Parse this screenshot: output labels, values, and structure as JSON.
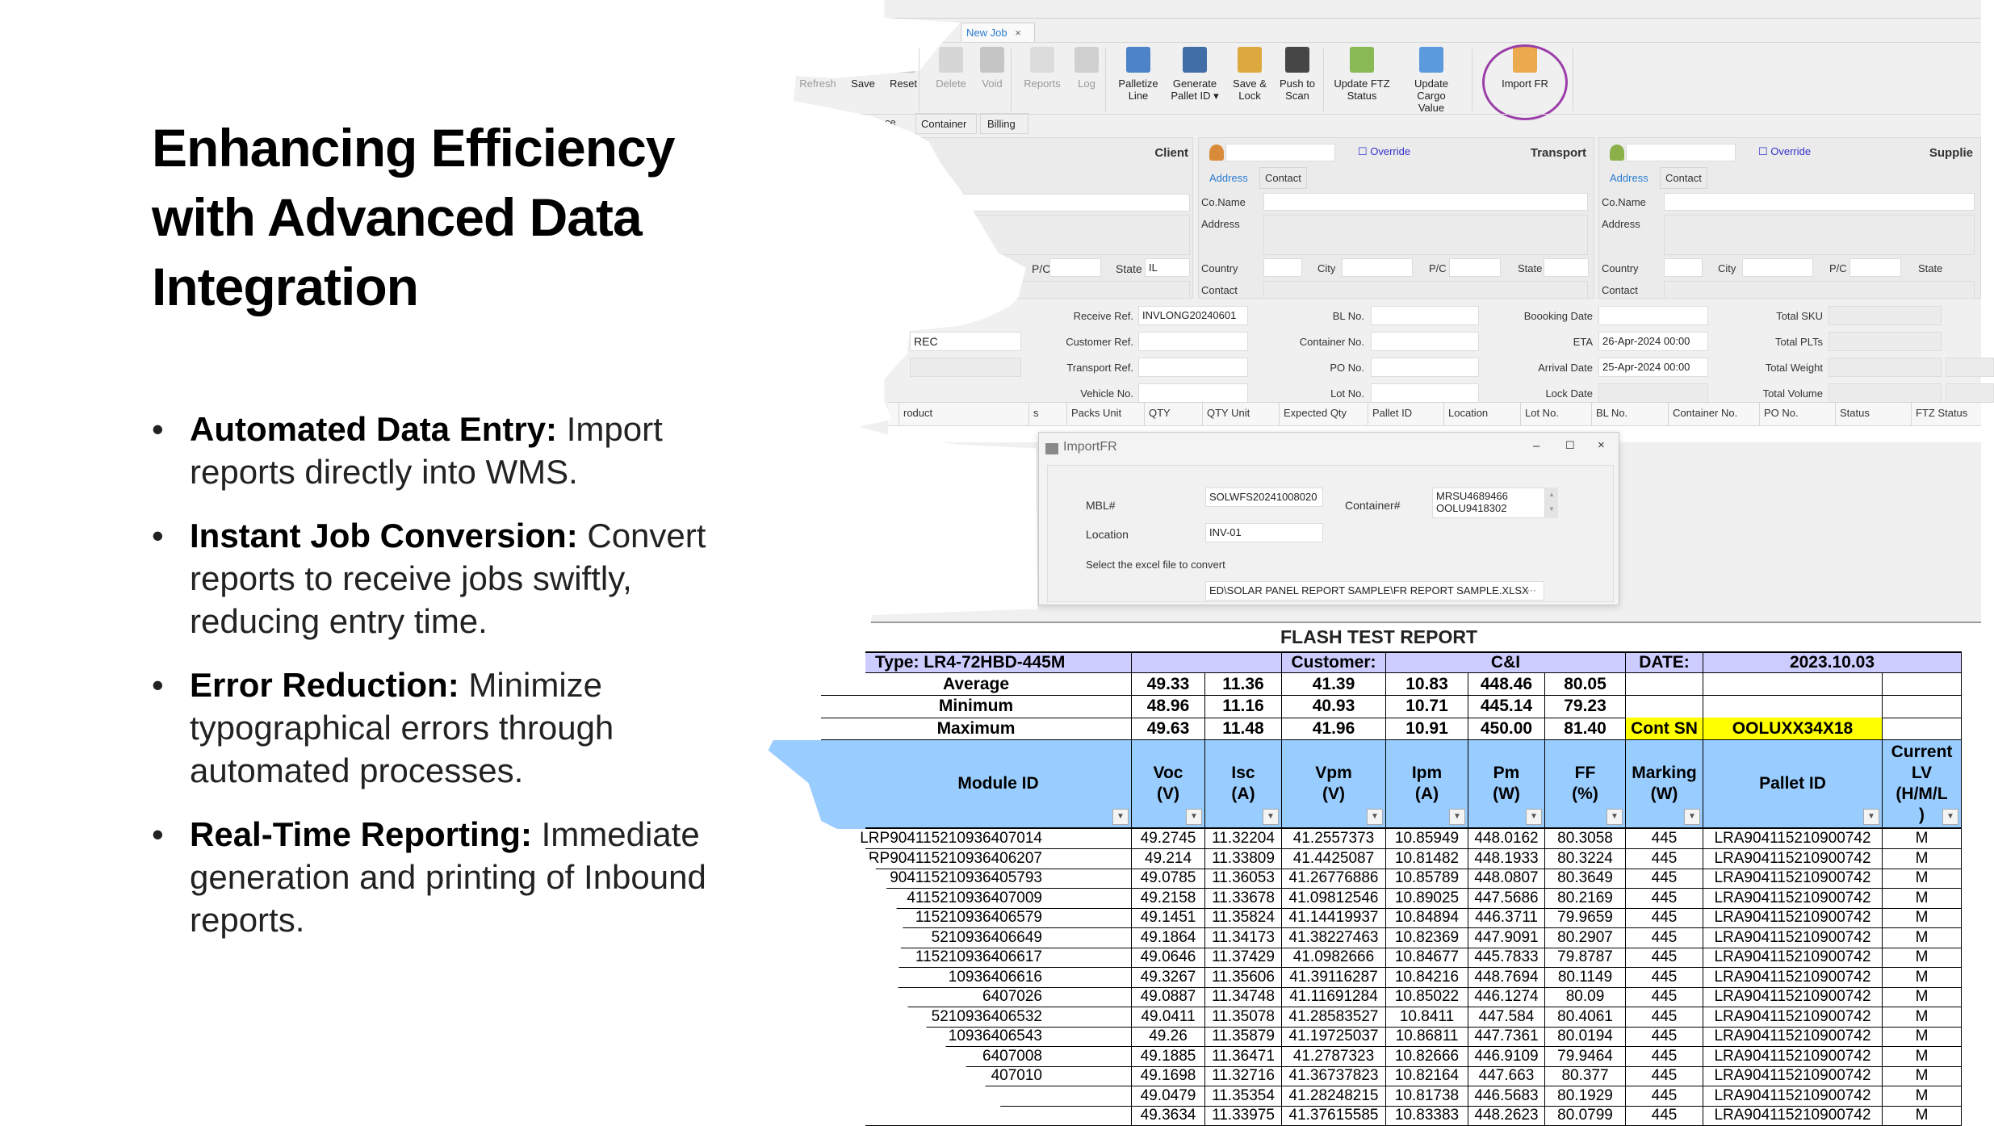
{
  "slide": {
    "title": "Enhancing Efficiency with Advanced Data Integration",
    "bullets": [
      {
        "head": "Automated Data Entry:",
        "text": " Import reports directly into WMS."
      },
      {
        "head": "Instant Job Conversion:",
        "text": " Convert reports to receive jobs swiftly, reducing entry time."
      },
      {
        "head": "Error Reduction:",
        "text": " Minimize typographical errors through automated processes."
      },
      {
        "head": "Real-Time Reporting:",
        "text": " Immediate generation and printing of Inbound reports."
      }
    ]
  },
  "app": {
    "tab": {
      "label": "New Job",
      "close": "×"
    },
    "toolbar": [
      {
        "label": "Refresh",
        "icon": "refresh-icon",
        "disabled": true
      },
      {
        "label": "Save",
        "icon": "save-icon",
        "disabled": false
      },
      {
        "label": "Reset",
        "icon": "reset-icon",
        "disabled": false
      },
      {
        "label": "Delete",
        "icon": "delete-icon",
        "disabled": true
      },
      {
        "label": "Void",
        "icon": "trash-icon",
        "disabled": true
      },
      {
        "label": "Reports",
        "icon": "reports-icon",
        "disabled": true
      },
      {
        "label": "Log",
        "icon": "log-icon",
        "disabled": true
      },
      {
        "label": "Palletize Line",
        "icon": "palletize-icon",
        "disabled": false
      },
      {
        "label": "Generate Pallet ID ▾",
        "icon": "generate-ab-icon",
        "disabled": false
      },
      {
        "label": "Save & Lock",
        "icon": "save-lock-icon",
        "disabled": false
      },
      {
        "label": "Push to Scan",
        "icon": "barcode-icon",
        "disabled": false
      },
      {
        "label": "Update FTZ Status",
        "icon": "flag-icon",
        "disabled": false
      },
      {
        "label": "Update Cargo Value",
        "icon": "grid-edit-icon",
        "disabled": false
      },
      {
        "label": "Import FR",
        "icon": "import-table-icon",
        "disabled": false
      }
    ],
    "subtabs": [
      "ce",
      "Container",
      "Billing"
    ],
    "client": {
      "title": "Client",
      "pc_label": "P/C",
      "state_label": "State",
      "state_value": "IL"
    },
    "transport": {
      "title": "Transport",
      "override": "Override"
    },
    "supplier": {
      "title": "Supplie",
      "override": "Override"
    },
    "address_tabs": [
      "Address",
      "Contact"
    ],
    "addr_labels": {
      "coname": "Co.Name",
      "address": "Address",
      "country": "Country",
      "city": "City",
      "pc": "P/C",
      "state": "State",
      "contact": "Contact"
    },
    "form": {
      "receive_ref": {
        "label": "Receive Ref.",
        "value": "INVLONG20240601"
      },
      "customer_ref": {
        "label": "Customer Ref.",
        "value": ""
      },
      "transport_ref": {
        "label": "Transport Ref.",
        "value": ""
      },
      "vehicle_no": {
        "label": "Vehicle No.",
        "value": ""
      },
      "bl_no": {
        "label": "BL No.",
        "value": ""
      },
      "container_no": {
        "label": "Container No.",
        "value": ""
      },
      "po_no": {
        "label": "PO No.",
        "value": ""
      },
      "lot_no": {
        "label": "Lot No.",
        "value": ""
      },
      "booking_date": {
        "label": "Boooking Date",
        "value": ""
      },
      "eta": {
        "label": "ETA",
        "value": "26-Apr-2024 00:00"
      },
      "arrival_date": {
        "label": "Arrival Date",
        "value": "25-Apr-2024 00:00"
      },
      "lock_date": {
        "label": "Lock Date",
        "value": ""
      },
      "total_sku": {
        "label": "Total SKU"
      },
      "total_plts": {
        "label": "Total PLTs"
      },
      "total_weight": {
        "label": "Total Weight"
      },
      "total_volume": {
        "label": "Total Volume"
      },
      "rec_select": "REC"
    },
    "grid_columns": [
      "roduct",
      "s",
      "Packs Unit",
      "QTY",
      "QTY Unit",
      "Expected Qty",
      "Pallet ID",
      "Location",
      "Lot No.",
      "BL No.",
      "Container No.",
      "PO No.",
      "Status",
      "FTZ Status"
    ],
    "accent_color": "#9b3fa8"
  },
  "dialog": {
    "title": "ImportFR",
    "mbl_label": "MBL#",
    "mbl_value": "SOLWFS20241008020",
    "container_label": "Container#",
    "container_values": [
      "MRSU4689466",
      "OOLU9418302"
    ],
    "location_label": "Location",
    "location_value": "INV-01",
    "select_label": "Select the excel file to convert",
    "file_path": "ED\\SOLAR PANEL REPORT SAMPLE\\FR REPORT SAMPLE.XLSX",
    "browse": "···"
  },
  "report": {
    "title": "FLASH TEST REPORT",
    "type": "Type: LR4-72HBD-445M",
    "customer_label": "Customer:",
    "customer_value": "C&I",
    "date_label": "DATE:",
    "date_value": "2023.10.03",
    "stats": [
      {
        "label": "Average",
        "values": [
          "49.33",
          "11.36",
          "41.39",
          "10.83",
          "448.46",
          "80.05"
        ]
      },
      {
        "label": "Minimum",
        "values": [
          "48.96",
          "11.16",
          "40.93",
          "10.71",
          "445.14",
          "79.23"
        ]
      },
      {
        "label": "Maximum",
        "values": [
          "49.63",
          "11.48",
          "41.96",
          "10.91",
          "450.00",
          "81.40"
        ]
      }
    ],
    "cont_sn_label": "Cont SN",
    "cont_sn_value": "OOLUXX34X18",
    "headers": [
      "Module ID",
      "Voc\n(V)",
      "Isc\n(A)",
      "Vpm\n(V)",
      "Ipm\n(A)",
      "Pm\n(W)",
      "FF\n(%)",
      "Marking\n(W)",
      "Pallet ID",
      "Current\nLV\n(H/M/L\n)"
    ],
    "rows": [
      [
        "LRP904115210936407014",
        "49.2745",
        "11.32204",
        "41.2557373",
        "10.85949",
        "448.0162",
        "80.3058",
        "445",
        "LRA904115210900742",
        "M"
      ],
      [
        "RP904115210936406207",
        "49.214",
        "11.33809",
        "41.4425087",
        "10.81482",
        "448.1933",
        "80.3224",
        "445",
        "LRA904115210900742",
        "M"
      ],
      [
        "904115210936405793",
        "49.0785",
        "11.36053",
        "41.26776886",
        "10.85789",
        "448.0807",
        "80.3649",
        "445",
        "LRA904115210900742",
        "M"
      ],
      [
        "4115210936407009",
        "49.2158",
        "11.33678",
        "41.09812546",
        "10.89025",
        "447.5686",
        "80.2169",
        "445",
        "LRA904115210900742",
        "M"
      ],
      [
        "115210936406579",
        "49.1451",
        "11.35824",
        "41.14419937",
        "10.84894",
        "446.3711",
        "79.9659",
        "445",
        "LRA904115210900742",
        "M"
      ],
      [
        "5210936406649",
        "49.1864",
        "11.34173",
        "41.38227463",
        "10.82369",
        "447.9091",
        "80.2907",
        "445",
        "LRA904115210900742",
        "M"
      ],
      [
        "115210936406617",
        "49.0646",
        "11.37429",
        "41.0982666",
        "10.84677",
        "445.7833",
        "79.8787",
        "445",
        "LRA904115210900742",
        "M"
      ],
      [
        "10936406616",
        "49.3267",
        "11.35606",
        "41.39116287",
        "10.84216",
        "448.7694",
        "80.1149",
        "445",
        "LRA904115210900742",
        "M"
      ],
      [
        "6407026",
        "49.0887",
        "11.34748",
        "41.11691284",
        "10.85022",
        "446.1274",
        "80.09",
        "445",
        "LRA904115210900742",
        "M"
      ],
      [
        "5210936406532",
        "49.0411",
        "11.35078",
        "41.28583527",
        "10.8411",
        "447.584",
        "80.4061",
        "445",
        "LRA904115210900742",
        "M"
      ],
      [
        "10936406543",
        "49.26",
        "11.35879",
        "41.19725037",
        "10.86811",
        "447.7361",
        "80.0194",
        "445",
        "LRA904115210900742",
        "M"
      ],
      [
        "6407008",
        "49.1885",
        "11.36471",
        "41.2787323",
        "10.82666",
        "446.9109",
        "79.9464",
        "445",
        "LRA904115210900742",
        "M"
      ],
      [
        "407010",
        "49.1698",
        "11.32716",
        "41.36737823",
        "10.82164",
        "447.663",
        "80.377",
        "445",
        "LRA904115210900742",
        "M"
      ],
      [
        "",
        "49.0479",
        "11.35354",
        "41.28248215",
        "10.81738",
        "446.5683",
        "80.1929",
        "445",
        "LRA904115210900742",
        "M"
      ],
      [
        "",
        "49.3634",
        "11.33975",
        "41.37615585",
        "10.83383",
        "448.2623",
        "80.0799",
        "445",
        "LRA904115210900742",
        "M"
      ]
    ],
    "colors": {
      "type_row": "#ccccff",
      "header": "#99ccff",
      "highlight": "#ffff00"
    }
  }
}
